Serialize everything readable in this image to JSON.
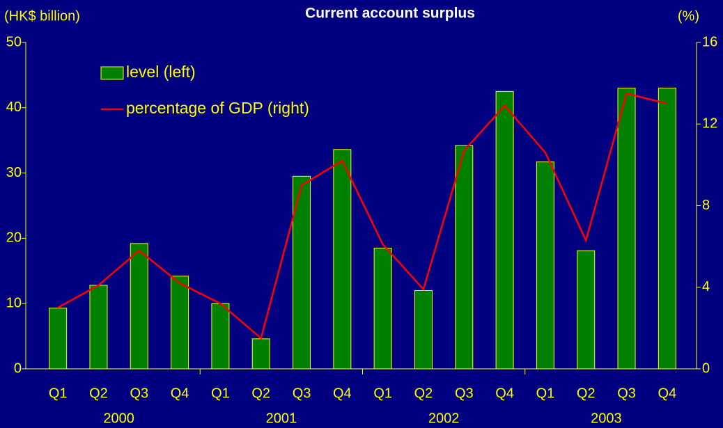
{
  "chart_data": {
    "type": "bar_line",
    "title": "Current account surplus",
    "y_label": "(HK$ billion)",
    "y2_label": "(%)",
    "categories": [
      "Q1",
      "Q2",
      "Q3",
      "Q4",
      "Q1",
      "Q2",
      "Q3",
      "Q4",
      "Q1",
      "Q2",
      "Q3",
      "Q4",
      "Q1",
      "Q2",
      "Q3",
      "Q4"
    ],
    "years": [
      "2000",
      "2001",
      "2002",
      "2003"
    ],
    "series": [
      {
        "name": "level (left)",
        "type": "bar",
        "color": "#008000",
        "edge": "#ffff00",
        "axis": "y",
        "values": [
          9.3,
          12.8,
          19.2,
          14.2,
          10.0,
          4.6,
          29.5,
          33.6,
          18.5,
          12.0,
          34.2,
          42.5,
          31.7,
          18.1,
          43.0,
          43.0
        ]
      },
      {
        "name": "percentage of GDP (right)",
        "type": "line",
        "color": "#ff0000",
        "axis": "y2",
        "values": [
          3.0,
          4.1,
          5.8,
          4.2,
          3.2,
          1.5,
          9.0,
          10.2,
          6.1,
          3.9,
          10.7,
          12.9,
          10.6,
          6.3,
          13.5,
          13.0
        ]
      }
    ],
    "ylim": [
      0,
      50
    ],
    "yticks": [
      0,
      10,
      20,
      30,
      40,
      50
    ],
    "y2lim": [
      0,
      16
    ],
    "y2ticks": [
      0,
      4,
      8,
      12,
      16
    ],
    "legend": "upper left"
  }
}
